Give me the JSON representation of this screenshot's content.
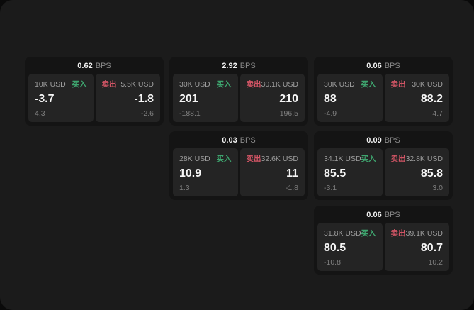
{
  "labels": {
    "bps_unit": "BPS",
    "buy": "买入",
    "sell": "卖出"
  },
  "colors": {
    "page_bg": "#0a0a0a",
    "window_bg": "#1b1b1b",
    "card_bg": "#141414",
    "panel_bg": "#242424",
    "buy_accent": "#3ea46e",
    "sell_accent": "#d25565",
    "value_text": "#f5f5f5",
    "muted_text": "#9e9e9e"
  },
  "cards": [
    {
      "col": 1,
      "row": 1,
      "bps": "0.62",
      "buy": {
        "amount": "10K USD",
        "price": "-3.7",
        "delta": "4.3"
      },
      "sell": {
        "amount": "5.5K USD",
        "price": "-1.8",
        "delta": "-2.6"
      }
    },
    {
      "col": 2,
      "row": 1,
      "bps": "2.92",
      "buy": {
        "amount": "30K USD",
        "price": "201",
        "delta": "-188.1"
      },
      "sell": {
        "amount": "30.1K USD",
        "price": "210",
        "delta": "196.5"
      }
    },
    {
      "col": 3,
      "row": 1,
      "bps": "0.06",
      "buy": {
        "amount": "30K USD",
        "price": "88",
        "delta": "-4.9"
      },
      "sell": {
        "amount": "30K USD",
        "price": "88.2",
        "delta": "4.7"
      }
    },
    {
      "col": 2,
      "row": 2,
      "bps": "0.03",
      "buy": {
        "amount": "28K USD",
        "price": "10.9",
        "delta": "1.3"
      },
      "sell": {
        "amount": "32.6K USD",
        "price": "11",
        "delta": "-1.8"
      }
    },
    {
      "col": 3,
      "row": 2,
      "bps": "0.09",
      "buy": {
        "amount": "34.1K USD",
        "price": "85.5",
        "delta": "-3.1"
      },
      "sell": {
        "amount": "32.8K USD",
        "price": "85.8",
        "delta": "3.0"
      }
    },
    {
      "col": 3,
      "row": 3,
      "bps": "0.06",
      "buy": {
        "amount": "31.8K USD",
        "price": "80.5",
        "delta": "-10.8"
      },
      "sell": {
        "amount": "39.1K USD",
        "price": "80.7",
        "delta": "10.2"
      }
    }
  ]
}
